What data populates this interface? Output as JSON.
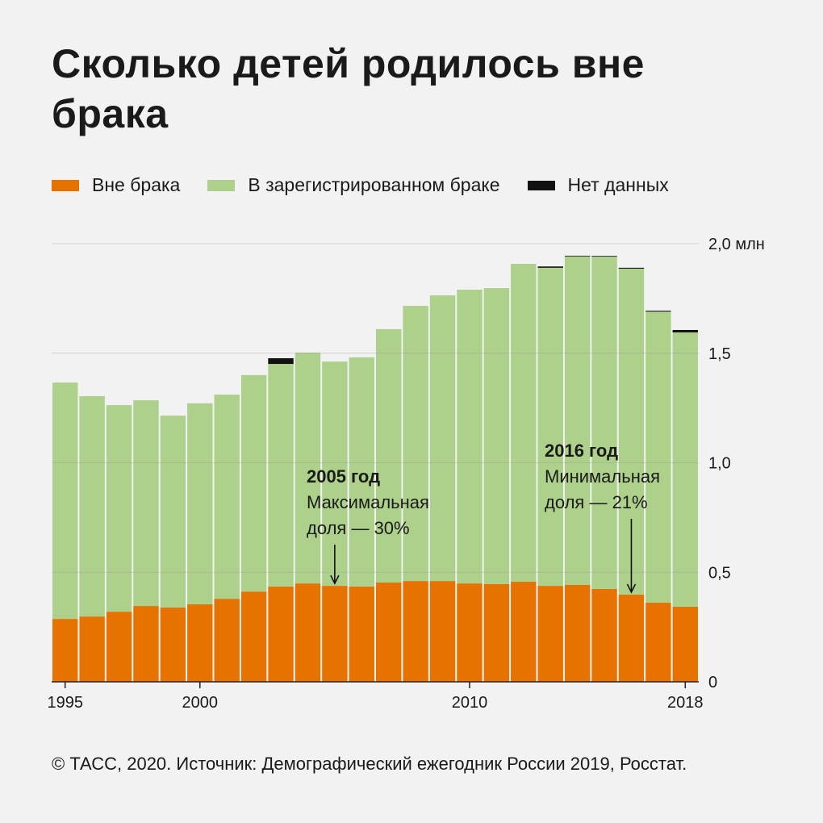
{
  "title": "Сколько детей родилось вне брака",
  "source": "© ТАСС, 2020. Источник: Демографический ежегодник России 2019, Росстат.",
  "legend": [
    {
      "label": "Вне брака",
      "color": "#e87200"
    },
    {
      "label": "В зарегистрированном браке",
      "color": "#add18a"
    },
    {
      "label": "Нет данных",
      "color": "#111111"
    }
  ],
  "chart_data": {
    "type": "bar",
    "stacked": true,
    "title": "Сколько детей родилось вне брака",
    "ylabel": "",
    "xlabel": "",
    "unit": "млн",
    "ylim": [
      0,
      2.0
    ],
    "yticks": [
      0,
      0.5,
      1.0,
      1.5,
      2.0
    ],
    "ytick_labels": [
      "0",
      "0,5",
      "1,0",
      "1,5",
      "2,0 млн"
    ],
    "xtick_labels": [
      "1995",
      "2000",
      "2010",
      "2018"
    ],
    "grid": true,
    "legend_position": "top-left",
    "categories": [
      1995,
      1996,
      1997,
      1998,
      1999,
      2000,
      2001,
      2002,
      2003,
      2004,
      2005,
      2006,
      2007,
      2008,
      2009,
      2010,
      2011,
      2012,
      2013,
      2014,
      2015,
      2016,
      2017,
      2018
    ],
    "series": [
      {
        "name": "Вне брака",
        "color": "#e87200",
        "values": [
          0.287,
          0.298,
          0.32,
          0.346,
          0.339,
          0.354,
          0.379,
          0.412,
          0.435,
          0.449,
          0.438,
          0.435,
          0.453,
          0.46,
          0.46,
          0.449,
          0.446,
          0.457,
          0.438,
          0.442,
          0.424,
          0.398,
          0.361,
          0.343
        ]
      },
      {
        "name": "В зарегистрированном браке",
        "color": "#add18a",
        "values": [
          1.079,
          1.006,
          0.943,
          0.939,
          0.876,
          0.917,
          0.932,
          0.988,
          1.016,
          1.054,
          1.024,
          1.046,
          1.157,
          1.256,
          1.304,
          1.341,
          1.351,
          1.451,
          1.452,
          1.5,
          1.517,
          1.488,
          1.329,
          1.252
        ]
      },
      {
        "name": "Нет данных",
        "color": "#111111",
        "values": [
          0,
          0,
          0,
          0,
          0,
          0,
          0,
          0,
          0.026,
          0,
          0,
          0,
          0,
          0,
          0,
          0,
          0,
          0,
          0.006,
          0.003,
          0.003,
          0.004,
          0.004,
          0.011
        ]
      }
    ],
    "annotations": [
      {
        "year": 2005,
        "title": "2005 год",
        "lines": [
          "Максимальная",
          "доля — 30%"
        ]
      },
      {
        "year": 2016,
        "title": "2016 год",
        "lines": [
          "Минимальная",
          "доля — 21%"
        ]
      }
    ]
  }
}
